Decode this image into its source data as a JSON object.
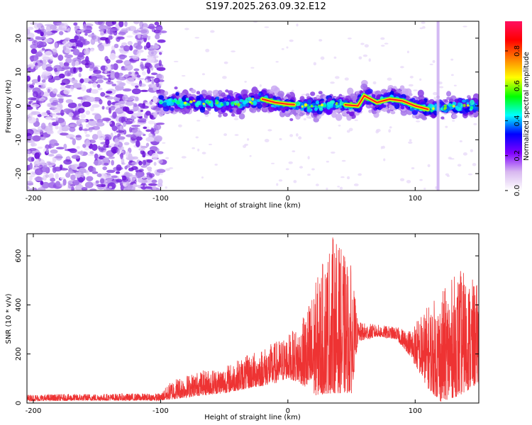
{
  "title": "S197.2025.263.09.32.E12",
  "chart_data": [
    {
      "type": "heatmap",
      "title": "S197.2025.263.09.32.E12",
      "xlabel": "Height of straight line (km)",
      "ylabel": "Frequency (Hz)",
      "xlim": [
        -205,
        150
      ],
      "ylim": [
        -25,
        25
      ],
      "xticks": [
        -200,
        -100,
        0,
        100
      ],
      "xtick_labels": [
        "-200",
        "-100",
        "0",
        "100"
      ],
      "yticks": [
        -20,
        -10,
        0,
        10,
        20
      ],
      "ytick_labels": [
        "-20",
        "-10",
        "0",
        "10",
        "20"
      ],
      "noise_region_km": [
        -205,
        -100
      ],
      "spikes_km": [
        118
      ],
      "ridge_frequency_hz": [
        {
          "x": -100,
          "y": 1
        },
        {
          "x": -80,
          "y": 1
        },
        {
          "x": -60,
          "y": 1
        },
        {
          "x": -40,
          "y": 0.5
        },
        {
          "x": -20,
          "y": 2
        },
        {
          "x": -10,
          "y": 1
        },
        {
          "x": 0,
          "y": 0.5
        },
        {
          "x": 20,
          "y": 0
        },
        {
          "x": 40,
          "y": 0.5
        },
        {
          "x": 55,
          "y": 0
        },
        {
          "x": 60,
          "y": 3
        },
        {
          "x": 70,
          "y": 1
        },
        {
          "x": 80,
          "y": 2
        },
        {
          "x": 90,
          "y": 1.5
        },
        {
          "x": 100,
          "y": 0
        },
        {
          "x": 110,
          "y": -1
        },
        {
          "x": 130,
          "y": 0
        },
        {
          "x": 150,
          "y": 0
        }
      ],
      "colorbar": {
        "label": "Normalized spectral amplitude",
        "range": [
          0,
          0.97
        ],
        "ticks": [
          0.0,
          0.2,
          0.4,
          0.6,
          0.8
        ],
        "tick_labels": [
          "0.0",
          "0.2",
          "0.4",
          "0.6",
          "0.8"
        ],
        "colors": [
          "#ffffff",
          "#d8b8f0",
          "#8000ff",
          "#0000ff",
          "#00ffff",
          "#00ff00",
          "#ffff00",
          "#ff8000",
          "#ff0000",
          "#ff1060"
        ]
      }
    },
    {
      "type": "line",
      "xlabel": "Height of straight line (km)",
      "ylabel": "SNR (10 * v/v)",
      "xlim": [
        -205,
        150
      ],
      "ylim": [
        0,
        690
      ],
      "xticks": [
        -200,
        -100,
        0,
        100
      ],
      "xtick_labels": [
        "-200",
        "-100",
        "0",
        "100"
      ],
      "yticks": [
        0,
        200,
        400,
        600
      ],
      "ytick_labels": [
        "0",
        "200",
        "400",
        "600"
      ],
      "color": "#ee3333",
      "series": [
        {
          "name": "SNR",
          "envelope": [
            {
              "x": -205,
              "low": 8,
              "high": 35
            },
            {
              "x": -150,
              "low": 10,
              "high": 38
            },
            {
              "x": -100,
              "low": 10,
              "high": 40
            },
            {
              "x": -90,
              "low": 15,
              "high": 100
            },
            {
              "x": -70,
              "low": 30,
              "high": 130
            },
            {
              "x": -50,
              "low": 40,
              "high": 150
            },
            {
              "x": -30,
              "low": 60,
              "high": 200
            },
            {
              "x": -10,
              "low": 80,
              "high": 250
            },
            {
              "x": 0,
              "low": 100,
              "high": 280
            },
            {
              "x": 10,
              "low": 80,
              "high": 320
            },
            {
              "x": 20,
              "low": 30,
              "high": 470
            },
            {
              "x": 35,
              "low": 40,
              "high": 690
            },
            {
              "x": 50,
              "low": 40,
              "high": 560
            },
            {
              "x": 55,
              "low": 250,
              "high": 330
            },
            {
              "x": 70,
              "low": 270,
              "high": 320
            },
            {
              "x": 85,
              "low": 260,
              "high": 310
            },
            {
              "x": 95,
              "low": 200,
              "high": 300
            },
            {
              "x": 110,
              "low": 60,
              "high": 400
            },
            {
              "x": 120,
              "low": 5,
              "high": 450
            },
            {
              "x": 135,
              "low": 30,
              "high": 550
            },
            {
              "x": 150,
              "low": 80,
              "high": 480
            }
          ]
        }
      ]
    }
  ]
}
